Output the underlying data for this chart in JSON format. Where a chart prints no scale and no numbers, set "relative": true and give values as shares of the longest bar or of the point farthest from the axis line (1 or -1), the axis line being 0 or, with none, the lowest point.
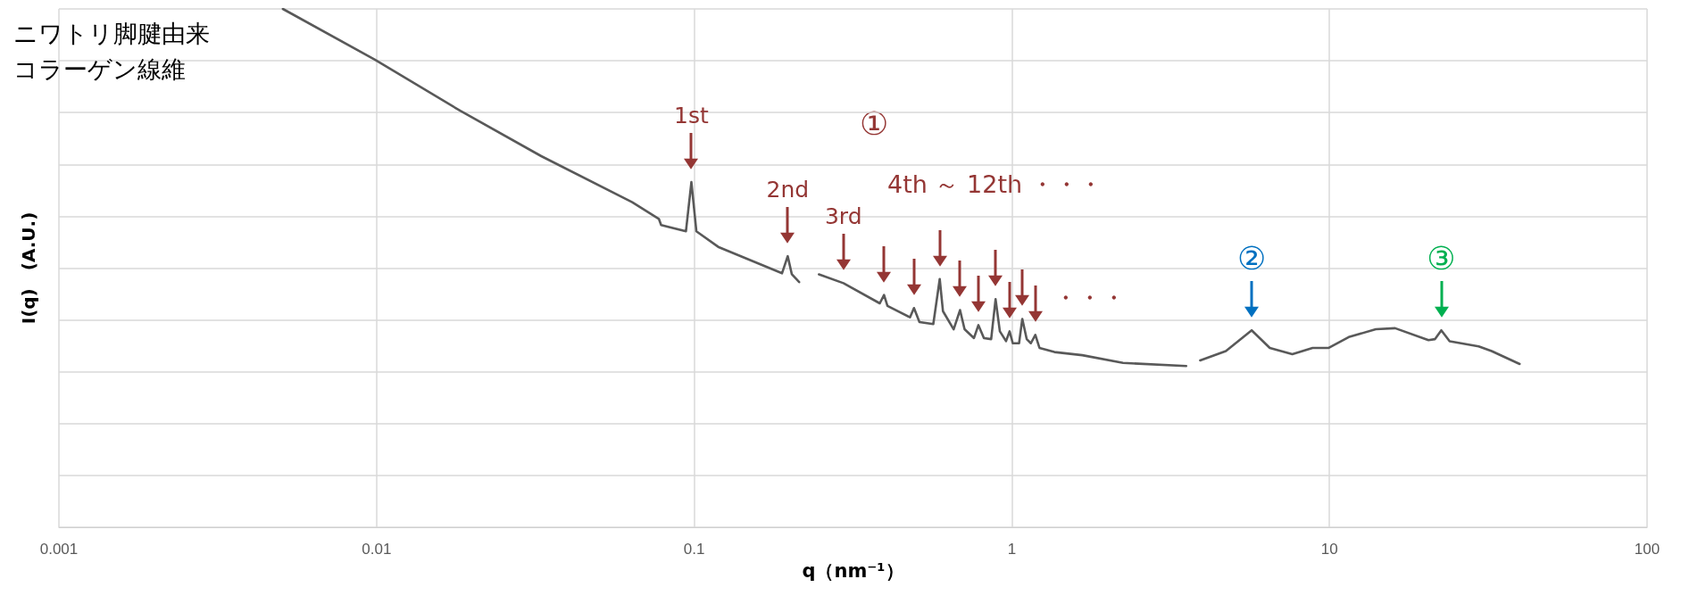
{
  "chart_data": {
    "type": "line",
    "title": "ニワトリ脚腱由来コラーゲン線維",
    "xlabel": "q（nm⁻¹）",
    "ylabel": "I(q)　(A.U.)",
    "relative": true,
    "log": "x",
    "grid": true,
    "marker": "none",
    "line_style": "solid",
    "xlim": [
      0.001,
      100
    ],
    "xticks": [
      0.001,
      0.01,
      0.1,
      1,
      10,
      100
    ],
    "x": [
      0.00507,
      0.00988,
      0.0184,
      0.033,
      0.0638,
      0.0774,
      0.0787,
      0.0942,
      0.098,
      0.1016,
      0.119,
      0.189,
      0.197,
      0.203,
      0.214,
      0.23,
      0.247,
      0.295,
      0.384,
      0.396,
      0.406,
      0.478,
      0.492,
      0.512,
      0.566,
      0.593,
      0.607,
      0.656,
      0.687,
      0.71,
      0.76,
      0.785,
      0.817,
      0.861,
      0.889,
      0.917,
      0.959,
      0.984,
      1.007,
      1.054,
      1.079,
      1.114,
      1.148,
      1.186,
      1.222,
      1.362,
      1.667,
      2.239,
      3.54,
      3.7,
      3.917,
      4.72,
      5.69,
      6.49,
      7.64,
      8.85,
      9.95,
      11.5,
      14.0,
      16.1,
      20.5,
      21.5,
      22.5,
      23.9,
      29.5,
      32.4,
      39.7
    ],
    "series": [
      {
        "color": "#595959",
        "values": [
          1.0,
          0.902,
          0.803,
          0.716,
          0.627,
          0.595,
          0.583,
          0.571,
          0.666,
          0.571,
          0.541,
          0.49,
          0.523,
          0.488,
          0.473,
          null,
          0.488,
          0.471,
          0.432,
          0.448,
          0.427,
          0.405,
          0.423,
          0.396,
          0.392,
          0.479,
          0.417,
          0.382,
          0.419,
          0.382,
          0.365,
          0.39,
          0.365,
          0.363,
          0.44,
          0.378,
          0.359,
          0.378,
          0.355,
          0.355,
          0.402,
          0.363,
          0.355,
          0.371,
          0.346,
          0.338,
          0.332,
          0.317,
          0.311,
          null,
          0.322,
          0.34,
          0.38,
          0.346,
          0.334,
          0.346,
          0.346,
          0.367,
          0.382,
          0.384,
          0.361,
          0.363,
          0.38,
          0.359,
          0.349,
          0.34,
          0.315
        ]
      }
    ],
    "annotations": [
      "①",
      "4th ～ 12th ・・・",
      "・・・",
      {
        "text": "1st",
        "x": 0.098,
        "y": 0.666
      },
      {
        "text": "2nd",
        "x": 0.197,
        "y": 0.523
      },
      {
        "text": "3rd",
        "x": 0.295,
        "y": 0.471
      },
      {
        "text": "②",
        "x": 5.69,
        "y": 0.38
      },
      {
        "text": "③",
        "x": 22.5,
        "y": 0.38
      }
    ]
  }
}
